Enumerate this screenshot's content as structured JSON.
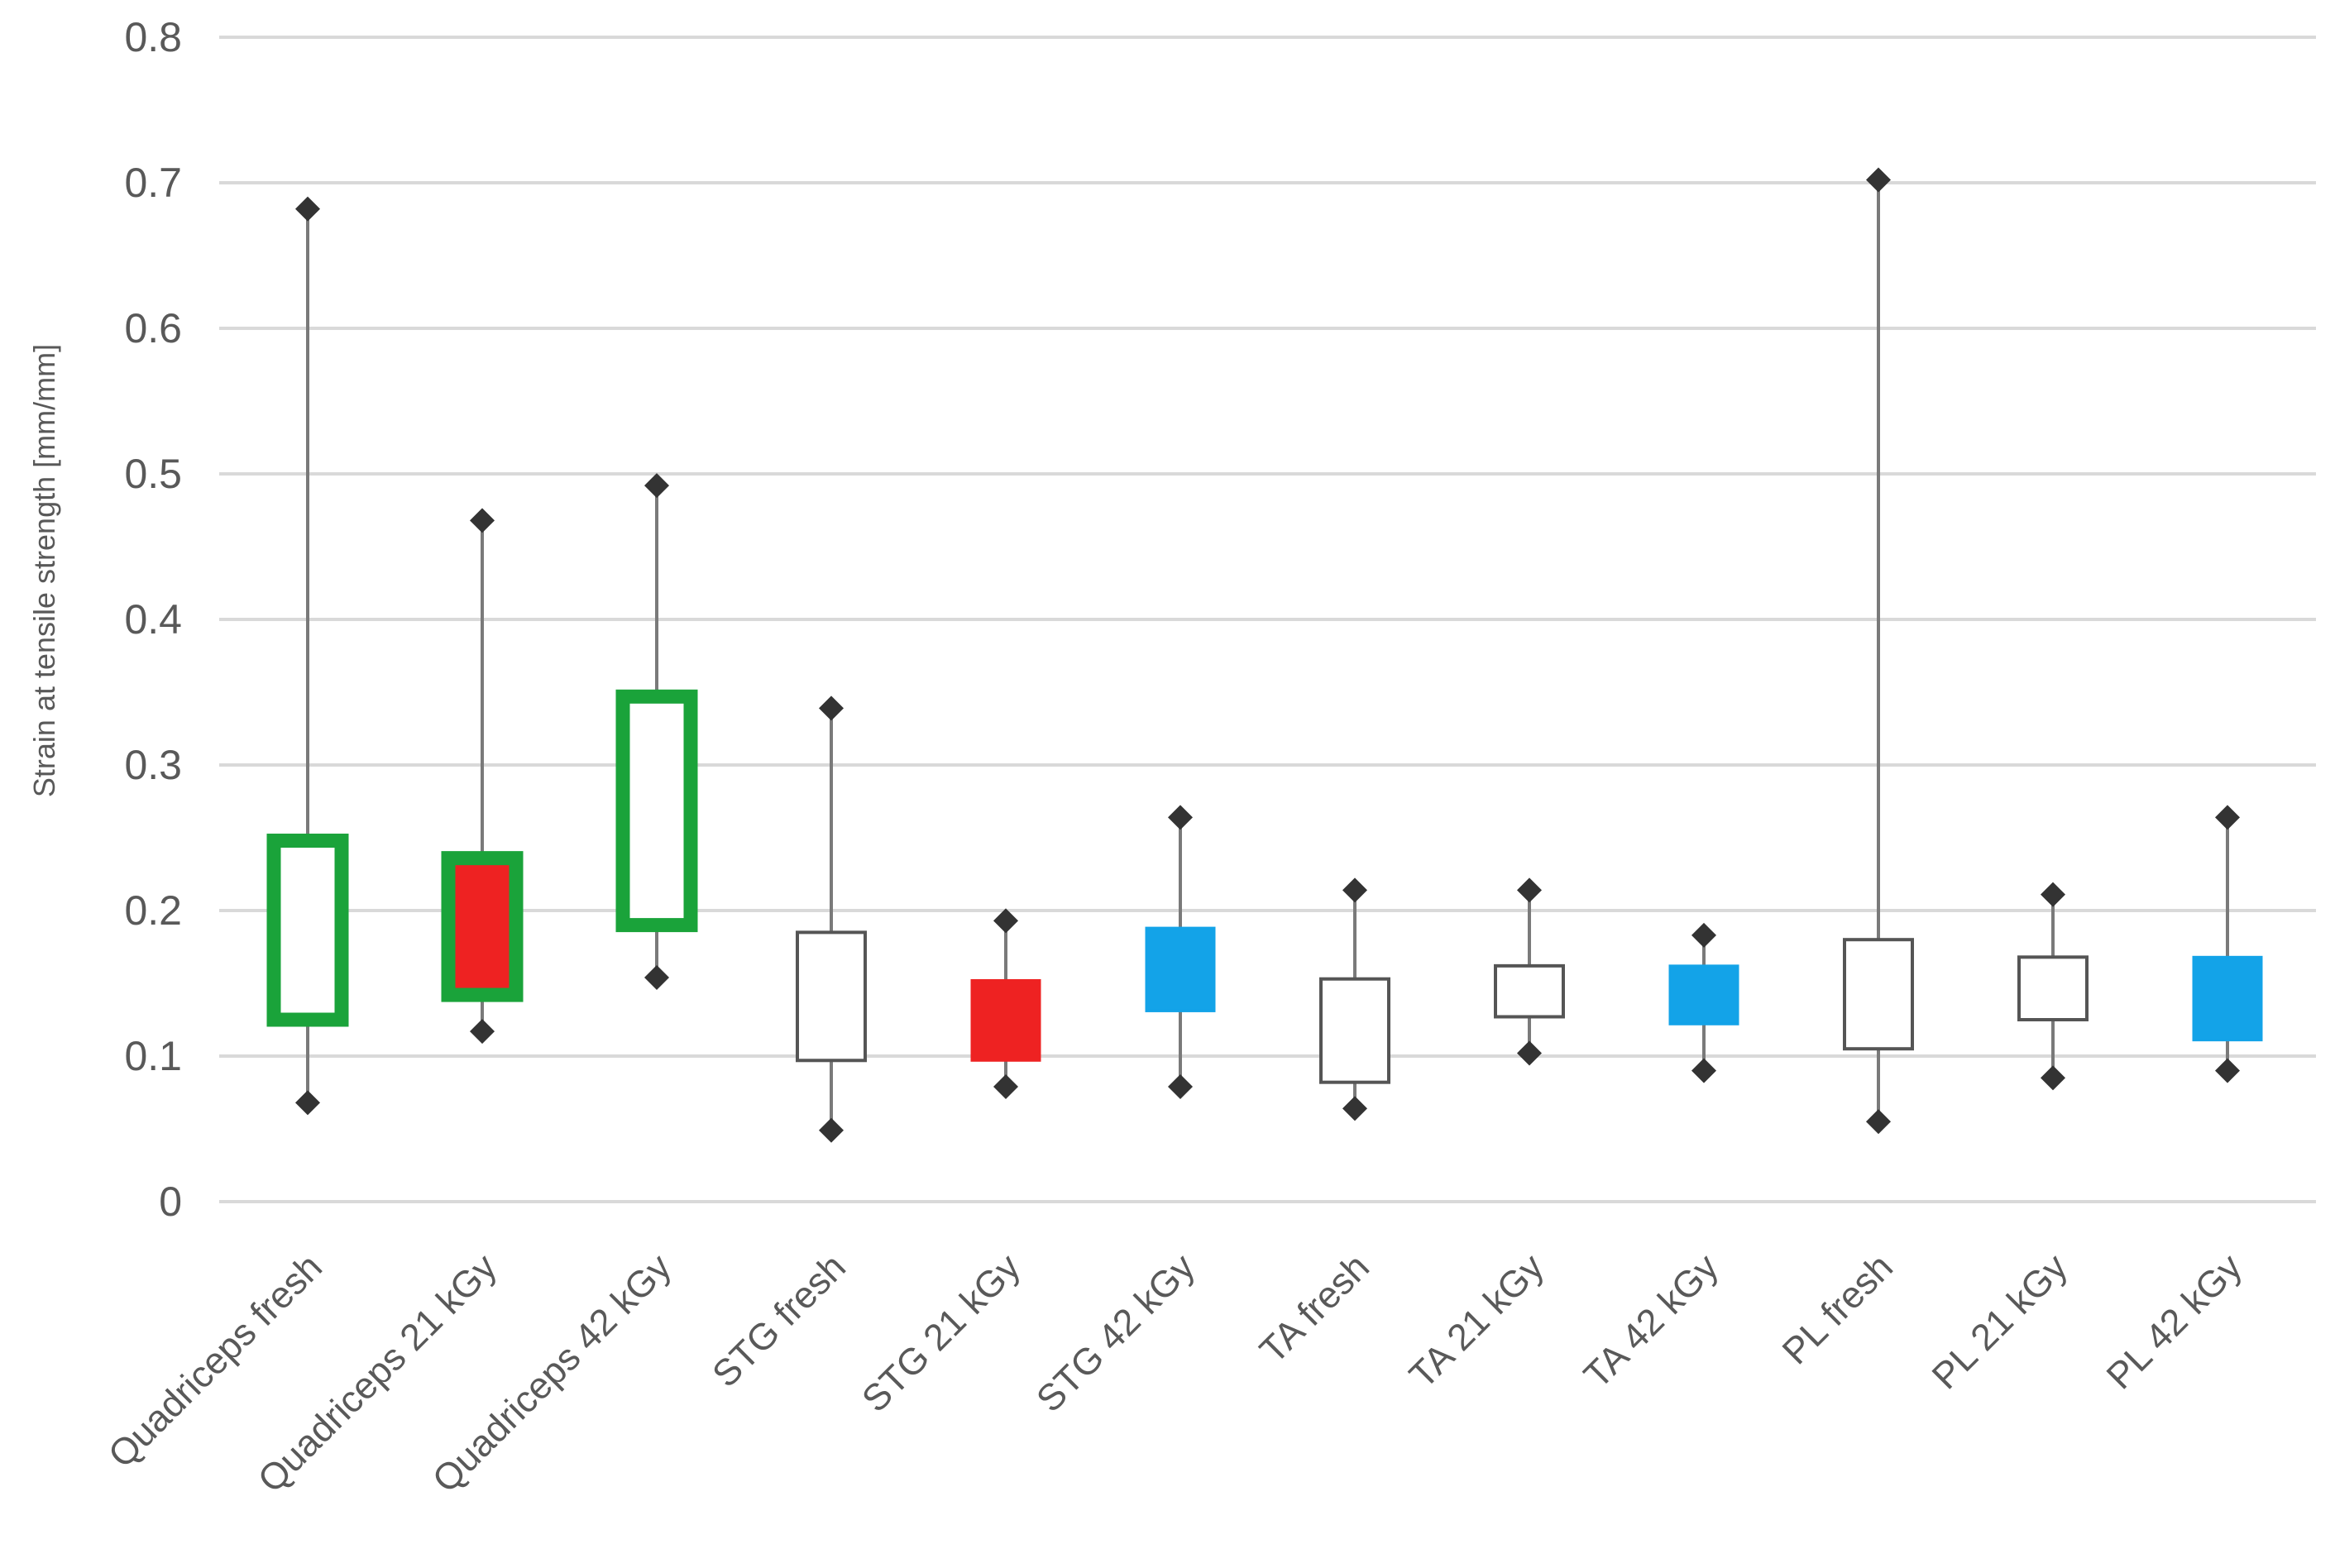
{
  "chart_data": {
    "type": "box",
    "title": "",
    "xlabel": "",
    "ylabel": "Strain at tensile strength [mm/mm]",
    "ylim": [
      0,
      0.8
    ],
    "yticks": [
      "0",
      "0.1",
      "0.2",
      "0.3",
      "0.4",
      "0.5",
      "0.6",
      "0.7",
      "0.8"
    ],
    "grid": true,
    "legend": "none",
    "colors": {
      "green": "#1aa33a",
      "red": "#ee2222",
      "blue": "#13a3e8",
      "white": "#ffffff",
      "box_stroke": "#555555",
      "whisker": "#7a7a7a",
      "marker": "#333333",
      "grid": "#d9d9d9",
      "text": "#595959"
    },
    "categories": [
      {
        "label": "Quadriceps fresh",
        "min": 0.068,
        "q1": 0.125,
        "q3": 0.248,
        "max": 0.682,
        "style": "green-outline"
      },
      {
        "label": "Quadriceps 21 kGy",
        "min": 0.117,
        "q1": 0.142,
        "q3": 0.236,
        "max": 0.468,
        "style": "green-red"
      },
      {
        "label": "Quadriceps 42 kGy",
        "min": 0.154,
        "q1": 0.19,
        "q3": 0.347,
        "max": 0.492,
        "style": "green-outline"
      },
      {
        "label": "STG fresh",
        "min": 0.049,
        "q1": 0.097,
        "q3": 0.185,
        "max": 0.339,
        "style": "white"
      },
      {
        "label": "STG 21 kGy",
        "min": 0.079,
        "q1": 0.097,
        "q3": 0.152,
        "max": 0.193,
        "style": "red"
      },
      {
        "label": "STG 42 kGy",
        "min": 0.079,
        "q1": 0.131,
        "q3": 0.188,
        "max": 0.264,
        "style": "blue"
      },
      {
        "label": "TA fresh",
        "min": 0.064,
        "q1": 0.082,
        "q3": 0.153,
        "max": 0.214,
        "style": "white"
      },
      {
        "label": "TA 21 kGy",
        "min": 0.102,
        "q1": 0.127,
        "q3": 0.162,
        "max": 0.214,
        "style": "white"
      },
      {
        "label": "TA 42 kGy",
        "min": 0.09,
        "q1": 0.122,
        "q3": 0.162,
        "max": 0.183,
        "style": "blue"
      },
      {
        "label": "PL fresh",
        "min": 0.055,
        "q1": 0.105,
        "q3": 0.18,
        "max": 0.702,
        "style": "white"
      },
      {
        "label": "PL 21 kGy",
        "min": 0.085,
        "q1": 0.125,
        "q3": 0.168,
        "max": 0.211,
        "style": "white"
      },
      {
        "label": "PL 42 kGy",
        "min": 0.09,
        "q1": 0.111,
        "q3": 0.168,
        "max": 0.264,
        "style": "blue"
      }
    ]
  }
}
